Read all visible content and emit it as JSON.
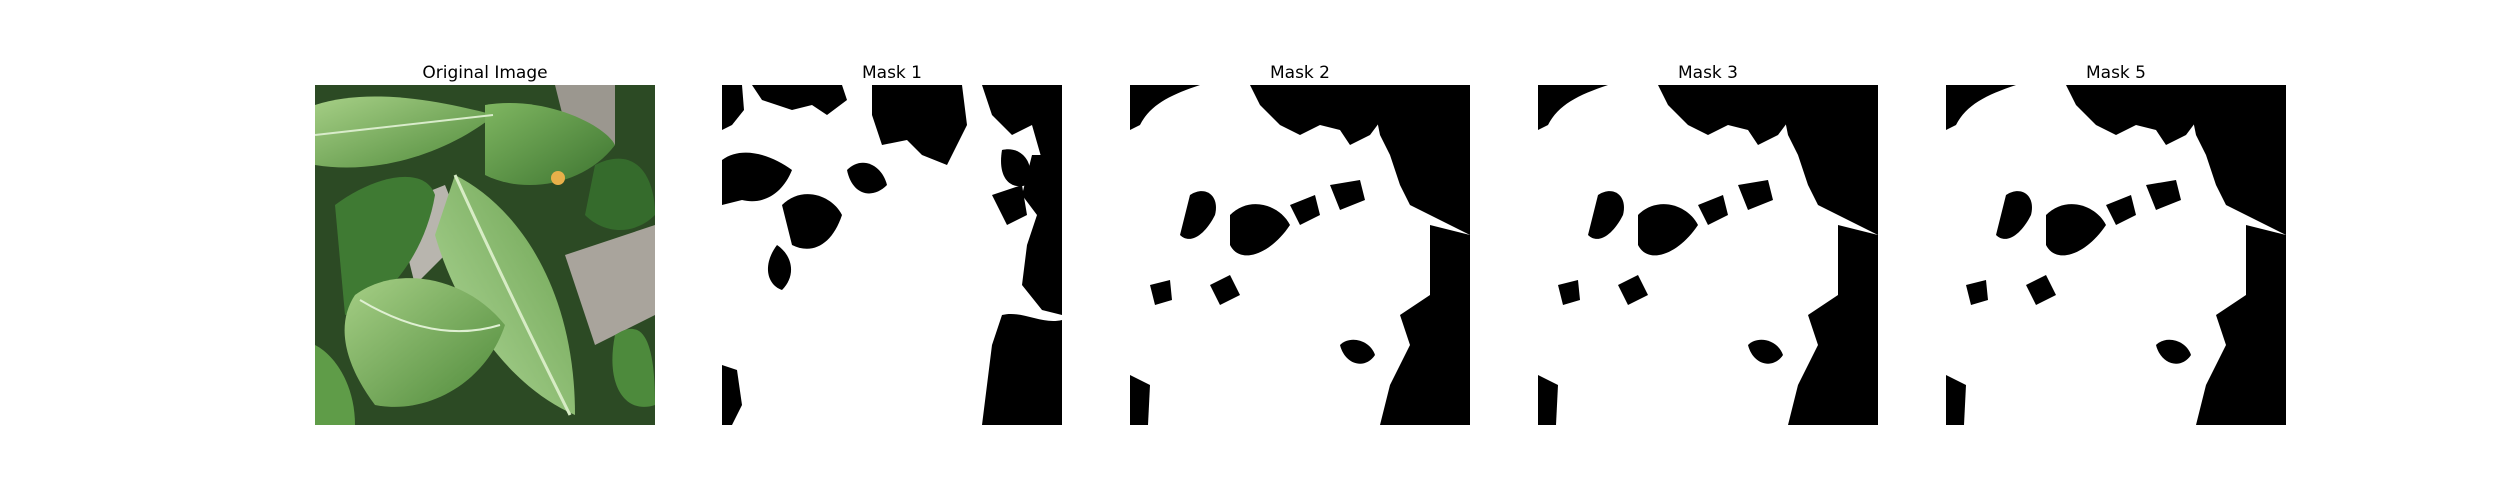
{
  "figure": {
    "panels": [
      {
        "title": "Original Image",
        "kind": "photo",
        "depicts": "leaf-photo"
      },
      {
        "title": "Mask 1",
        "kind": "mask",
        "depicts": "binary-mask"
      },
      {
        "title": "Mask 2",
        "kind": "mask",
        "depicts": "binary-mask"
      },
      {
        "title": "Mask 3",
        "kind": "mask",
        "depicts": "binary-mask"
      },
      {
        "title": "Mask 5",
        "kind": "mask",
        "depicts": "binary-mask"
      }
    ]
  },
  "colors": {
    "mask_foreground": "#ffffff",
    "mask_background": "#000000",
    "leaf_light": "#8fc06e",
    "leaf_mid": "#5e9a45",
    "leaf_dark": "#2f5e26",
    "stone": "#a9a49c"
  }
}
